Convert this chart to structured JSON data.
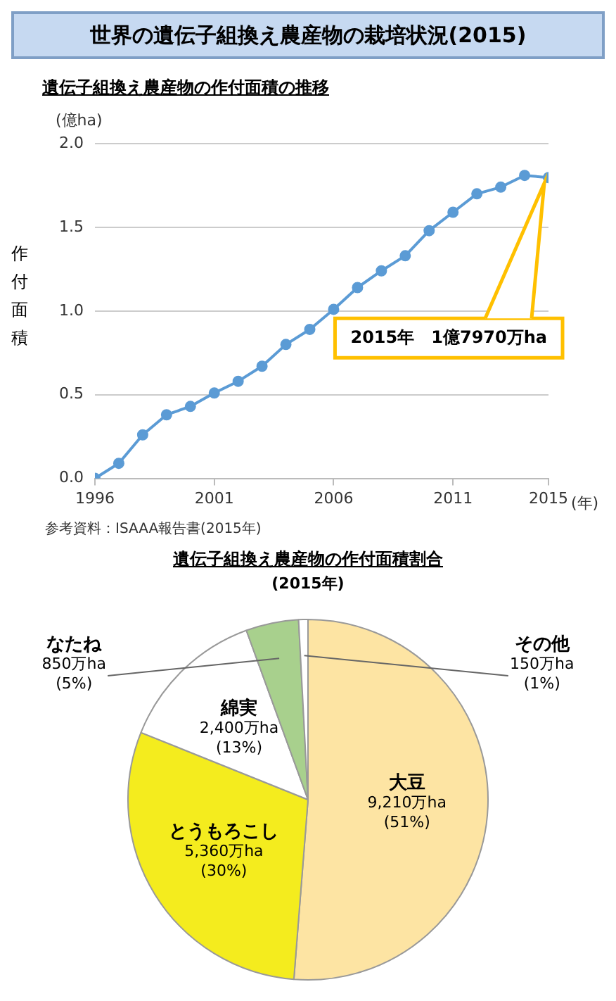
{
  "chart_data": [
    {
      "type": "line",
      "title": "世界の遺伝子組換え農産物の栽培状況(2015)",
      "subtitle": "遺伝子組換え農産物の作付面積の推移",
      "ylabel": "作付面積",
      "x": [
        1996,
        1997,
        1998,
        1999,
        2000,
        2001,
        2002,
        2003,
        2004,
        2005,
        2006,
        2007,
        2008,
        2009,
        2010,
        2011,
        2012,
        2013,
        2014,
        2015
      ],
      "series": [
        {
          "color": "#5b9bd5",
          "values": [
            0.0,
            0.09,
            0.26,
            0.38,
            0.43,
            0.51,
            0.58,
            0.67,
            0.8,
            0.89,
            1.01,
            1.14,
            1.24,
            1.33,
            1.48,
            1.59,
            1.7,
            1.74,
            1.81,
            1.797
          ]
        }
      ],
      "xlim": [
        1996,
        2015
      ],
      "xticks": [
        1996,
        2001,
        2006,
        2011,
        2015
      ],
      "ylim": [
        0,
        2
      ],
      "yticks": [
        {
          "value": 0,
          "label": "0.0"
        },
        0.5,
        {
          "value": 1,
          "label": "1.0"
        },
        1.5,
        {
          "value": 2,
          "label": "2.0"
        }
      ],
      "grid": "y",
      "marker": "circle",
      "annotations": [
        "(億ha)",
        "(年)",
        {
          "text": "2015年　1億7970万ha",
          "x": 2015,
          "y": 1.797
        },
        "参考資料：ISAAA報告書(2015年)"
      ]
    },
    {
      "type": "pie",
      "title": "遺伝子組換え農産物の作付面積割合",
      "subtitle": "(2015年)",
      "categories": [
        "大豆",
        "とうもろこし",
        "綿実",
        "なたね",
        "その他"
      ],
      "values": [
        9210,
        5360,
        2400,
        850,
        150
      ],
      "colors": [
        "#fde4a3",
        "#f4ec1e",
        "#ffffff",
        "#a8d08d",
        "#ffffff"
      ],
      "value_labels": [
        "9,210万ha\n(51%)",
        "5,360万ha\n(30%)",
        "2,400万ha\n(13%)",
        "850万ha\n(5%)",
        "150万ha\n(1%)"
      ]
    }
  ]
}
